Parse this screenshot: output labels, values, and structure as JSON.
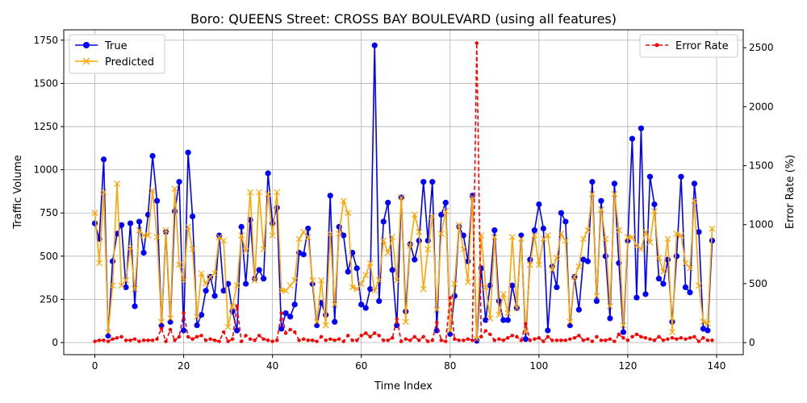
{
  "chart_data": {
    "type": "line",
    "title": "Boro: QUEENS Street: CROSS BAY BOULEVARD (using all features)",
    "xlabel": "Time Index",
    "ylabel": "Traffic Volume",
    "ylabel_right": "Error Rate (%)",
    "xlim": [
      -7,
      146
    ],
    "ylim": [
      -70,
      1810
    ],
    "ylim_right": [
      -102,
      2652
    ],
    "x_ticks": [
      0,
      20,
      40,
      60,
      80,
      100,
      120,
      140
    ],
    "y_ticks": [
      0,
      250,
      500,
      750,
      1000,
      1250,
      1500,
      1750
    ],
    "y_ticks_right": [
      0,
      500,
      1000,
      1500,
      2000,
      2500
    ],
    "grid": true,
    "legend_left": {
      "placement": "upper-left",
      "entries": [
        "True",
        "Predicted"
      ]
    },
    "legend_right": {
      "placement": "upper-right",
      "entries": [
        "Error Rate"
      ]
    },
    "series": [
      {
        "name": "True",
        "axis": "left",
        "color": "#0000ff",
        "marker": "circle",
        "dash": "solid",
        "values": [
          690,
          600,
          1060,
          40,
          470,
          630,
          680,
          320,
          690,
          210,
          700,
          520,
          740,
          1080,
          820,
          100,
          640,
          120,
          760,
          930,
          70,
          1100,
          730,
          100,
          160,
          300,
          380,
          270,
          620,
          300,
          340,
          180,
          70,
          670,
          340,
          710,
          370,
          420,
          370,
          980,
          690,
          780,
          80,
          170,
          150,
          220,
          520,
          510,
          660,
          340,
          100,
          230,
          160,
          850,
          120,
          670,
          620,
          410,
          520,
          430,
          220,
          200,
          310,
          1720,
          240,
          700,
          810,
          420,
          100,
          840,
          180,
          570,
          480,
          590,
          930,
          590,
          930,
          70,
          740,
          810,
          50,
          270,
          670,
          620,
          470,
          850,
          10,
          430,
          130,
          330,
          650,
          240,
          130,
          130,
          330,
          200,
          620,
          20,
          480,
          650,
          800,
          660,
          70,
          440,
          320,
          750,
          700,
          100,
          380,
          190,
          480,
          470,
          930,
          240,
          820,
          500,
          140,
          920,
          460,
          60,
          590,
          1180,
          260,
          1240,
          280,
          960,
          800,
          370,
          340,
          480,
          120,
          500,
          960,
          320,
          290,
          920,
          640,
          80,
          70,
          590
        ]
      },
      {
        "name": "Predicted",
        "axis": "left",
        "color": "#ffa500",
        "marker": "x",
        "dash": "solid",
        "values": [
          750,
          460,
          870,
          60,
          330,
          920,
          330,
          360,
          550,
          310,
          650,
          620,
          620,
          880,
          610,
          120,
          650,
          140,
          890,
          450,
          360,
          670,
          540,
          150,
          400,
          340,
          380,
          400,
          610,
          590,
          90,
          210,
          330,
          620,
          530,
          870,
          360,
          870,
          540,
          860,
          620,
          870,
          300,
          300,
          330,
          360,
          600,
          640,
          610,
          360,
          120,
          360,
          100,
          630,
          220,
          630,
          820,
          750,
          320,
          310,
          340,
          390,
          460,
          300,
          360,
          590,
          520,
          610,
          360,
          840,
          120,
          560,
          740,
          640,
          310,
          540,
          730,
          190,
          630,
          760,
          70,
          340,
          680,
          540,
          350,
          840,
          20,
          620,
          320,
          140,
          610,
          160,
          280,
          170,
          610,
          200,
          600,
          60,
          450,
          620,
          450,
          600,
          620,
          420,
          490,
          630,
          590,
          120,
          380,
          440,
          600,
          650,
          860,
          270,
          770,
          600,
          210,
          860,
          650,
          100,
          610,
          610,
          560,
          540,
          640,
          580,
          760,
          490,
          410,
          600,
          60,
          630,
          620,
          460,
          430,
          820,
          330,
          120,
          110,
          660
        ]
      },
      {
        "name": "Error Rate",
        "axis": "right",
        "color": "#ff0000",
        "marker": "dot",
        "dash": "dashed",
        "values": [
          10,
          20,
          20,
          10,
          30,
          40,
          50,
          20,
          20,
          30,
          10,
          20,
          20,
          20,
          30,
          120,
          10,
          110,
          20,
          50,
          250,
          50,
          30,
          50,
          60,
          20,
          30,
          20,
          10,
          90,
          10,
          30,
          310,
          10,
          60,
          30,
          20,
          60,
          30,
          20,
          10,
          20,
          250,
          80,
          110,
          90,
          20,
          30,
          20,
          20,
          10,
          50,
          20,
          30,
          20,
          30,
          10,
          60,
          20,
          20,
          60,
          80,
          50,
          80,
          60,
          20,
          20,
          40,
          200,
          10,
          30,
          20,
          50,
          20,
          50,
          10,
          20,
          170,
          20,
          10,
          380,
          30,
          20,
          20,
          30,
          20,
          2540,
          50,
          100,
          70,
          20,
          30,
          20,
          40,
          60,
          50,
          20,
          160,
          20,
          30,
          40,
          10,
          50,
          20,
          20,
          20,
          20,
          30,
          40,
          60,
          20,
          30,
          10,
          50,
          20,
          20,
          30,
          10,
          70,
          40,
          20,
          50,
          70,
          50,
          40,
          30,
          20,
          50,
          20,
          30,
          40,
          30,
          40,
          30,
          40,
          50,
          10,
          40,
          20,
          20
        ]
      }
    ]
  }
}
